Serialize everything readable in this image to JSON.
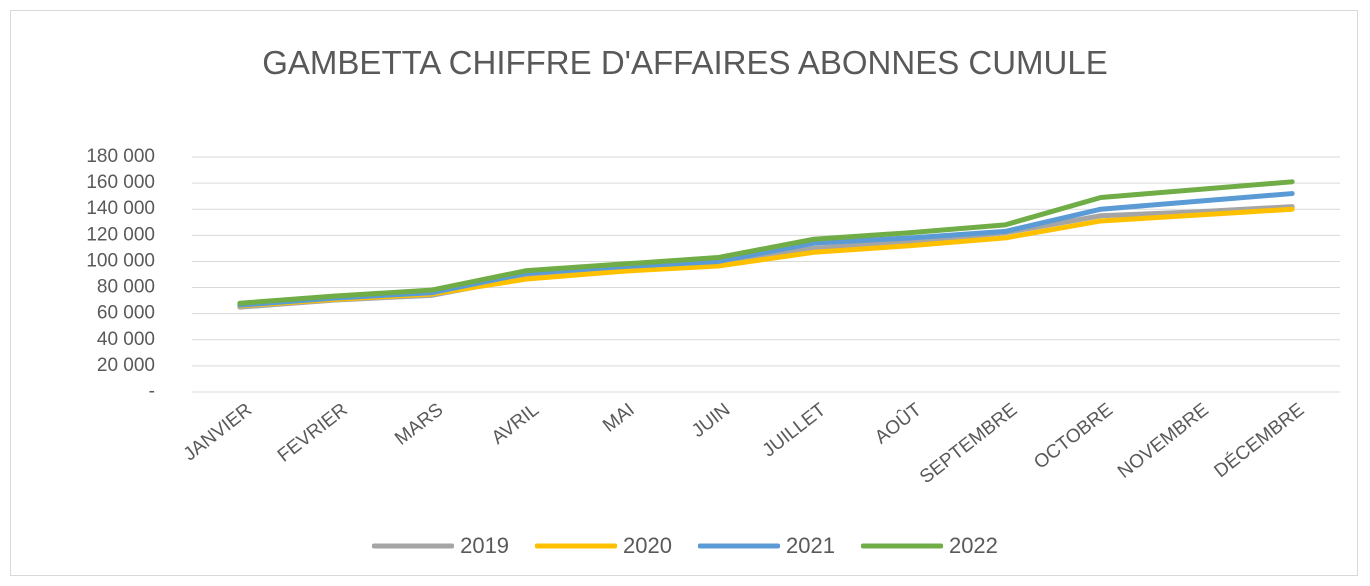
{
  "chart_data": {
    "type": "line",
    "title": "GAMBETTA CHIFFRE D'AFFAIRES ABONNES CUMULE",
    "categories": [
      "JANVIER",
      "FEVRIER",
      "MARS",
      "AVRIL",
      "MAI",
      "JUIN",
      "JUILLET",
      "AOÛT",
      "SEPTEMBRE",
      "OCTOBRE",
      "NOVEMBRE",
      "DÉCEMBRE"
    ],
    "series": [
      {
        "name": "2019",
        "color": "#a5a5a5",
        "values": [
          65000,
          70500,
          74000,
          88000,
          94000,
          98000,
          110000,
          115000,
          122000,
          135000,
          138000,
          142000
        ]
      },
      {
        "name": "2020",
        "color": "#ffc000",
        "values": [
          66000,
          71000,
          75000,
          86500,
          92500,
          96500,
          107000,
          112000,
          118000,
          131000,
          135500,
          140000
        ]
      },
      {
        "name": "2021",
        "color": "#5b9bd5",
        "values": [
          66500,
          72000,
          76000,
          91000,
          96000,
          100000,
          114000,
          118000,
          123000,
          140000,
          146000,
          152000
        ]
      },
      {
        "name": "2022",
        "color": "#70ad47",
        "values": [
          68000,
          73500,
          78000,
          93000,
          98000,
          103000,
          117000,
          122000,
          128000,
          149000,
          155000,
          161000
        ]
      }
    ],
    "ylim": [
      0,
      180000
    ],
    "yticks": [
      {
        "value": 0,
        "label": "-"
      },
      {
        "value": 20000,
        "label": "20 000"
      },
      {
        "value": 40000,
        "label": "40 000"
      },
      {
        "value": 60000,
        "label": "60 000"
      },
      {
        "value": 80000,
        "label": "80 000"
      },
      {
        "value": 100000,
        "label": "100 000"
      },
      {
        "value": 120000,
        "label": "120 000"
      },
      {
        "value": 140000,
        "label": "140 000"
      },
      {
        "value": 160000,
        "label": "160 000"
      },
      {
        "value": 180000,
        "label": "180 000"
      }
    ],
    "grid": true,
    "legend": "bottom"
  }
}
